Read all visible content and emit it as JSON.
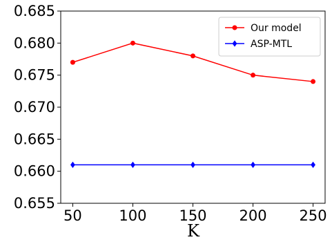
{
  "chart_data": {
    "type": "line",
    "title": "",
    "xlabel": "K",
    "ylabel": "",
    "x": [
      50,
      100,
      150,
      200,
      250
    ],
    "xticks": [
      "50",
      "100",
      "150",
      "200",
      "250"
    ],
    "yticks": [
      "0.655",
      "0.660",
      "0.665",
      "0.670",
      "0.675",
      "0.680",
      "0.685"
    ],
    "xlim": [
      40,
      260
    ],
    "ylim": [
      0.655,
      0.685
    ],
    "grid": false,
    "legend_position": "top-right",
    "series": [
      {
        "name": "Our model",
        "color": "#ff0000",
        "marker": "circle",
        "values": [
          0.677,
          0.68,
          0.678,
          0.675,
          0.674
        ]
      },
      {
        "name": "ASP-MTL",
        "color": "#0000ff",
        "marker": "diamond",
        "values": [
          0.661,
          0.661,
          0.661,
          0.661,
          0.661
        ]
      }
    ]
  }
}
